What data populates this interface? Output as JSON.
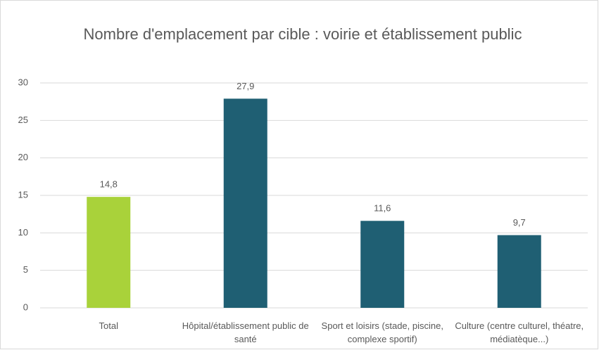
{
  "chart_data": {
    "type": "bar",
    "title": "Nombre d'emplacement par cible : voirie et établissement public",
    "categories": [
      "Total",
      "Hôpital/établissement public de santé",
      "Sport et loisirs (stade, piscine, complexe sportif)",
      "Culture (centre culturel, théatre, médiatèque...)"
    ],
    "values": [
      14.8,
      27.9,
      11.6,
      9.7
    ],
    "value_labels": [
      "14,8",
      "27,9",
      "11,6",
      "9,7"
    ],
    "colors": [
      "#a9d23a",
      "#1f5f73",
      "#1f5f73",
      "#1f5f73"
    ],
    "ylim": [
      0,
      30
    ],
    "yticks": [
      0,
      5,
      10,
      15,
      20,
      25,
      30
    ],
    "grid": true
  }
}
